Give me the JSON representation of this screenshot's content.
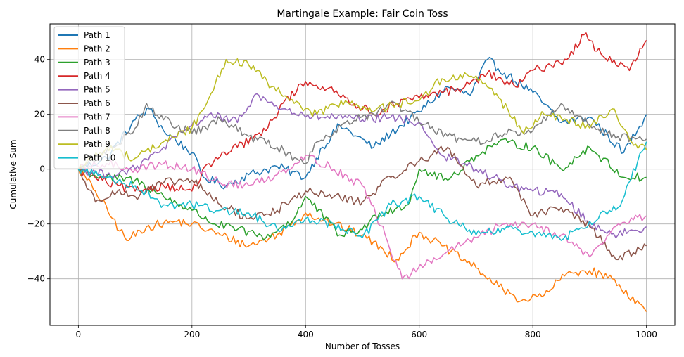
{
  "chart_data": {
    "type": "line",
    "title": "Martingale Example: Fair Coin Toss",
    "xlabel": "Number of Tosses",
    "ylabel": "Cumulative Sum",
    "xlim": [
      -50,
      1050
    ],
    "ylim": [
      -57,
      53
    ],
    "xticks": [
      0,
      200,
      400,
      600,
      800,
      1000
    ],
    "yticks": [
      -40,
      -20,
      0,
      20,
      40
    ],
    "xtick_labels": [
      "0",
      "200",
      "400",
      "600",
      "800",
      "1000"
    ],
    "ytick_labels": [
      "−40",
      "−20",
      "0",
      "20",
      "40"
    ],
    "grid": true,
    "legend_position": "top-left",
    "series": [
      {
        "name": "Path 1",
        "color": "#1f77b4",
        "x": [
          0,
          50,
          100,
          125,
          150,
          200,
          220,
          260,
          300,
          350,
          400,
          430,
          460,
          520,
          550,
          600,
          650,
          690,
          720,
          750,
          800,
          850,
          900,
          960,
          1000
        ],
        "y": [
          0,
          4,
          18,
          22,
          14,
          6,
          -3,
          -6,
          -2,
          1,
          -3,
          8,
          16,
          8,
          13,
          21,
          30,
          27,
          40,
          35,
          28,
          17,
          19,
          6,
          20
        ]
      },
      {
        "name": "Path 2",
        "color": "#ff7f0e",
        "x": [
          0,
          30,
          60,
          85,
          120,
          170,
          200,
          250,
          300,
          350,
          400,
          450,
          500,
          560,
          600,
          640,
          700,
          740,
          780,
          820,
          860,
          900,
          940,
          1000
        ],
        "y": [
          0,
          -8,
          -18,
          -26,
          -21,
          -19,
          -20,
          -24,
          -28,
          -24,
          -16,
          -20,
          -24,
          -33,
          -23,
          -28,
          -36,
          -43,
          -48,
          -46,
          -38,
          -37,
          -40,
          -52
        ]
      },
      {
        "name": "Path 3",
        "color": "#2ca02c",
        "x": [
          0,
          40,
          100,
          150,
          200,
          240,
          280,
          330,
          380,
          400,
          460,
          500,
          530,
          580,
          600,
          650,
          700,
          740,
          800,
          850,
          900,
          960,
          1000
        ],
        "y": [
          0,
          -3,
          -4,
          -10,
          -15,
          -20,
          -22,
          -25,
          -18,
          -10,
          -24,
          -22,
          -16,
          -13,
          0,
          -4,
          5,
          10,
          8,
          0,
          8,
          -3,
          -3
        ]
      },
      {
        "name": "Path 4",
        "color": "#d62728",
        "x": [
          0,
          50,
          100,
          150,
          200,
          230,
          280,
          330,
          360,
          400,
          430,
          470,
          520,
          560,
          600,
          640,
          680,
          720,
          770,
          800,
          860,
          890,
          920,
          970,
          1000
        ],
        "y": [
          0,
          -5,
          -8,
          -6,
          -8,
          2,
          8,
          14,
          24,
          32,
          30,
          26,
          20,
          24,
          26,
          28,
          30,
          35,
          30,
          36,
          40,
          49,
          42,
          36,
          47
        ]
      },
      {
        "name": "Path 5",
        "color": "#9467bd",
        "x": [
          0,
          50,
          100,
          150,
          200,
          230,
          280,
          310,
          360,
          400,
          450,
          500,
          550,
          600,
          640,
          700,
          760,
          800,
          850,
          900,
          950,
          1000
        ],
        "y": [
          0,
          -2,
          0,
          8,
          16,
          20,
          17,
          27,
          22,
          19,
          19,
          18,
          19,
          17,
          5,
          0,
          -6,
          -8,
          -9,
          -20,
          -24,
          -21
        ]
      },
      {
        "name": "Path 6",
        "color": "#8c564b",
        "x": [
          0,
          30,
          60,
          100,
          150,
          200,
          250,
          300,
          350,
          400,
          450,
          500,
          550,
          600,
          650,
          700,
          760,
          800,
          850,
          900,
          950,
          1000
        ],
        "y": [
          0,
          -12,
          -8,
          -10,
          -5,
          -4,
          -13,
          -18,
          -15,
          -8,
          -10,
          -12,
          -3,
          3,
          8,
          -6,
          -3,
          -17,
          -14,
          -21,
          -33,
          -28
        ]
      },
      {
        "name": "Path 7",
        "color": "#e377c2",
        "x": [
          0,
          50,
          100,
          150,
          200,
          250,
          300,
          350,
          400,
          450,
          500,
          540,
          570,
          610,
          650,
          700,
          750,
          800,
          850,
          900,
          950,
          1000
        ],
        "y": [
          0,
          2,
          0,
          2,
          0,
          -5,
          -6,
          -2,
          5,
          0,
          -6,
          -24,
          -40,
          -35,
          -30,
          -25,
          -20,
          -20,
          -24,
          -32,
          -20,
          -17
        ]
      },
      {
        "name": "Path 8",
        "color": "#7f7f7f",
        "x": [
          0,
          60,
          100,
          120,
          150,
          200,
          250,
          300,
          350,
          400,
          420,
          470,
          520,
          560,
          600,
          650,
          700,
          750,
          800,
          850,
          900,
          950,
          1000
        ],
        "y": [
          0,
          8,
          15,
          24,
          18,
          13,
          18,
          12,
          8,
          2,
          10,
          17,
          20,
          24,
          17,
          12,
          10,
          13,
          14,
          24,
          16,
          12,
          11
        ]
      },
      {
        "name": "Path 9",
        "color": "#bcbd22",
        "x": [
          0,
          50,
          100,
          150,
          200,
          230,
          260,
          300,
          340,
          380,
          420,
          470,
          520,
          560,
          600,
          640,
          700,
          740,
          780,
          820,
          860,
          900,
          940,
          970,
          1000
        ],
        "y": [
          0,
          8,
          4,
          10,
          15,
          26,
          40,
          38,
          30,
          24,
          20,
          25,
          21,
          24,
          25,
          33,
          34,
          26,
          14,
          20,
          18,
          15,
          22,
          11,
          7
        ]
      },
      {
        "name": "Path 10",
        "color": "#17becf",
        "x": [
          0,
          50,
          100,
          150,
          200,
          250,
          300,
          350,
          400,
          450,
          500,
          550,
          600,
          650,
          700,
          750,
          800,
          850,
          900,
          950,
          1000
        ],
        "y": [
          0,
          -3,
          -6,
          -13,
          -13,
          -15,
          -16,
          -22,
          -18,
          -20,
          -25,
          -13,
          -10,
          -18,
          -24,
          -22,
          -23,
          -26,
          -19,
          -14,
          10
        ]
      }
    ]
  }
}
